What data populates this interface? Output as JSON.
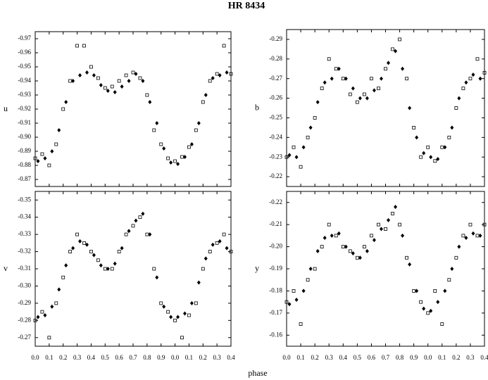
{
  "title": "HR 8434",
  "xlabel": "phase",
  "chart_data": [
    {
      "type": "scatter",
      "ylabel": "u",
      "xlim": [
        0,
        1.4
      ],
      "ylim": [
        -0.865,
        -0.975
      ],
      "xticks": [
        {
          "value": 0,
          "label": "0.0"
        },
        0.1,
        0.2,
        0.3,
        0.4,
        0.5,
        0.6,
        0.7,
        0.8,
        0.9,
        {
          "value": 1.0,
          "label": "0.0"
        },
        {
          "value": 1.1,
          "label": "0.1"
        },
        {
          "value": 1.2,
          "label": "0.2"
        },
        {
          "value": 1.3,
          "label": "0.3"
        },
        {
          "value": 1.4,
          "label": "0.4"
        }
      ],
      "yticks": [
        -0.97,
        -0.96,
        -0.95,
        -0.94,
        -0.93,
        -0.92,
        -0.91,
        {
          "value": -0.9,
          "label": "-0.90"
        },
        -0.89,
        -0.88,
        -0.87
      ],
      "series": [
        {
          "marker": "square",
          "color": "#000000",
          "x": [
            0.0,
            0.05,
            0.1,
            0.15,
            0.2,
            0.25,
            0.3,
            0.35,
            0.4,
            0.45,
            0.5,
            0.55,
            0.6,
            0.65,
            0.7,
            0.75,
            0.8,
            0.85,
            0.9,
            0.95,
            1.0,
            1.05,
            1.1,
            1.15,
            1.2,
            1.25,
            1.3,
            1.35,
            1.4
          ],
          "values": [
            -0.885,
            -0.888,
            -0.88,
            -0.895,
            -0.92,
            -0.94,
            -0.965,
            -0.965,
            -0.95,
            -0.942,
            -0.935,
            -0.936,
            -0.94,
            -0.944,
            -0.946,
            -0.942,
            -0.93,
            -0.905,
            -0.895,
            -0.885,
            -0.883,
            -0.886,
            -0.893,
            -0.905,
            -0.925,
            -0.94,
            -0.945,
            -0.965,
            -0.945
          ]
        },
        {
          "marker": "diamond",
          "color": "#000000",
          "x": [
            0.02,
            0.07,
            0.12,
            0.17,
            0.22,
            0.27,
            0.32,
            0.37,
            0.42,
            0.47,
            0.52,
            0.57,
            0.62,
            0.67,
            0.72,
            0.77,
            0.82,
            0.87,
            0.92,
            0.97,
            1.02,
            1.07,
            1.12,
            1.17,
            1.22,
            1.27,
            1.32,
            1.37
          ],
          "values": [
            -0.883,
            -0.885,
            -0.89,
            -0.905,
            -0.925,
            -0.94,
            -0.944,
            -0.946,
            -0.944,
            -0.937,
            -0.933,
            -0.932,
            -0.936,
            -0.94,
            -0.945,
            -0.94,
            -0.925,
            -0.91,
            -0.892,
            -0.882,
            -0.881,
            -0.886,
            -0.895,
            -0.91,
            -0.93,
            -0.942,
            -0.944,
            -0.946
          ]
        }
      ]
    },
    {
      "type": "scatter",
      "ylabel": "b",
      "xlim": [
        0,
        1.4
      ],
      "ylim": [
        -0.215,
        -0.295
      ],
      "xticks": [
        {
          "value": 0,
          "label": "0.0"
        },
        0.1,
        0.2,
        0.3,
        0.4,
        0.5,
        0.6,
        0.7,
        0.8,
        0.9,
        {
          "value": 1.0,
          "label": "0.0"
        },
        {
          "value": 1.1,
          "label": "0.1"
        },
        {
          "value": 1.2,
          "label": "0.2"
        },
        {
          "value": 1.3,
          "label": "0.3"
        },
        {
          "value": 1.4,
          "label": "0.4"
        }
      ],
      "yticks": [
        -0.29,
        -0.28,
        -0.27,
        -0.26,
        -0.25,
        -0.24,
        -0.23,
        -0.22
      ],
      "series": [
        {
          "marker": "square",
          "color": "#000000",
          "x": [
            0.0,
            0.05,
            0.1,
            0.15,
            0.2,
            0.25,
            0.3,
            0.35,
            0.4,
            0.45,
            0.5,
            0.55,
            0.6,
            0.65,
            0.7,
            0.75,
            0.8,
            0.85,
            0.9,
            0.95,
            1.0,
            1.05,
            1.1,
            1.15,
            1.2,
            1.25,
            1.3,
            1.35,
            1.4
          ],
          "values": [
            -0.23,
            -0.235,
            -0.225,
            -0.24,
            -0.25,
            -0.265,
            -0.28,
            -0.275,
            -0.27,
            -0.262,
            -0.258,
            -0.262,
            -0.27,
            -0.265,
            -0.275,
            -0.285,
            -0.29,
            -0.27,
            -0.245,
            -0.23,
            -0.235,
            -0.228,
            -0.235,
            -0.24,
            -0.255,
            -0.265,
            -0.27,
            -0.28,
            -0.273
          ]
        },
        {
          "marker": "diamond",
          "color": "#000000",
          "x": [
            0.02,
            0.07,
            0.12,
            0.17,
            0.22,
            0.27,
            0.32,
            0.37,
            0.42,
            0.47,
            0.52,
            0.57,
            0.62,
            0.67,
            0.72,
            0.77,
            0.82,
            0.87,
            0.92,
            0.97,
            1.02,
            1.07,
            1.12,
            1.17,
            1.22,
            1.27,
            1.32,
            1.37
          ],
          "values": [
            -0.231,
            -0.23,
            -0.235,
            -0.245,
            -0.258,
            -0.268,
            -0.27,
            -0.275,
            -0.27,
            -0.265,
            -0.26,
            -0.26,
            -0.264,
            -0.27,
            -0.278,
            -0.284,
            -0.275,
            -0.255,
            -0.24,
            -0.232,
            -0.23,
            -0.229,
            -0.235,
            -0.245,
            -0.26,
            -0.268,
            -0.272,
            -0.27
          ]
        }
      ]
    },
    {
      "type": "scatter",
      "ylabel": "v",
      "xlim": [
        0,
        1.4
      ],
      "ylim": [
        -0.265,
        -0.355
      ],
      "xticks": [
        {
          "value": 0,
          "label": "0.0"
        },
        0.1,
        0.2,
        0.3,
        0.4,
        0.5,
        0.6,
        0.7,
        0.8,
        0.9,
        {
          "value": 1.0,
          "label": "0.0"
        },
        {
          "value": 1.1,
          "label": "0.1"
        },
        {
          "value": 1.2,
          "label": "0.2"
        },
        {
          "value": 1.3,
          "label": "0.3"
        },
        {
          "value": 1.4,
          "label": "0.4"
        }
      ],
      "yticks": [
        -0.35,
        -0.34,
        -0.33,
        -0.32,
        -0.31,
        {
          "value": -0.3,
          "label": "-0.30"
        },
        -0.29,
        -0.28,
        -0.27
      ],
      "series": [
        {
          "marker": "square",
          "color": "#000000",
          "x": [
            0.0,
            0.05,
            0.1,
            0.15,
            0.2,
            0.25,
            0.3,
            0.35,
            0.4,
            0.45,
            0.5,
            0.55,
            0.6,
            0.65,
            0.7,
            0.75,
            0.8,
            0.85,
            0.9,
            0.95,
            1.0,
            1.05,
            1.1,
            1.15,
            1.2,
            1.25,
            1.3,
            1.35,
            1.4
          ],
          "values": [
            -0.28,
            -0.285,
            -0.27,
            -0.29,
            -0.305,
            -0.32,
            -0.33,
            -0.325,
            -0.32,
            -0.315,
            -0.31,
            -0.31,
            -0.32,
            -0.33,
            -0.335,
            -0.34,
            -0.33,
            -0.31,
            -0.29,
            -0.285,
            -0.28,
            -0.27,
            -0.283,
            -0.29,
            -0.31,
            -0.32,
            -0.325,
            -0.33,
            -0.32
          ]
        },
        {
          "marker": "diamond",
          "color": "#000000",
          "x": [
            0.02,
            0.07,
            0.12,
            0.17,
            0.22,
            0.27,
            0.32,
            0.37,
            0.42,
            0.47,
            0.52,
            0.57,
            0.62,
            0.67,
            0.72,
            0.77,
            0.82,
            0.87,
            0.92,
            0.97,
            1.02,
            1.07,
            1.12,
            1.17,
            1.22,
            1.27,
            1.32,
            1.37
          ],
          "values": [
            -0.282,
            -0.283,
            -0.288,
            -0.298,
            -0.312,
            -0.322,
            -0.326,
            -0.324,
            -0.318,
            -0.312,
            -0.31,
            -0.313,
            -0.322,
            -0.332,
            -0.338,
            -0.342,
            -0.33,
            -0.305,
            -0.288,
            -0.282,
            -0.282,
            -0.284,
            -0.29,
            -0.302,
            -0.316,
            -0.324,
            -0.326,
            -0.322
          ]
        }
      ]
    },
    {
      "type": "scatter",
      "ylabel": "y",
      "xlim": [
        0,
        1.4
      ],
      "ylim": [
        -0.155,
        -0.225
      ],
      "xticks": [
        {
          "value": 0,
          "label": "0.0"
        },
        0.1,
        0.2,
        0.3,
        0.4,
        0.5,
        0.6,
        0.7,
        0.8,
        0.9,
        {
          "value": 1.0,
          "label": "0.0"
        },
        {
          "value": 1.1,
          "label": "0.1"
        },
        {
          "value": 1.2,
          "label": "0.2"
        },
        {
          "value": 1.3,
          "label": "0.3"
        },
        {
          "value": 1.4,
          "label": "0.4"
        }
      ],
      "yticks": [
        -0.22,
        -0.21,
        {
          "value": -0.2,
          "label": "-0.20"
        },
        -0.19,
        -0.18,
        -0.17,
        -0.16
      ],
      "series": [
        {
          "marker": "square",
          "color": "#000000",
          "x": [
            0.0,
            0.05,
            0.1,
            0.15,
            0.2,
            0.25,
            0.3,
            0.35,
            0.4,
            0.45,
            0.5,
            0.55,
            0.6,
            0.65,
            0.7,
            0.75,
            0.8,
            0.85,
            0.9,
            0.95,
            1.0,
            1.05,
            1.1,
            1.15,
            1.2,
            1.25,
            1.3,
            1.35,
            1.4
          ],
          "values": [
            -0.175,
            -0.18,
            -0.165,
            -0.185,
            -0.19,
            -0.2,
            -0.21,
            -0.205,
            -0.2,
            -0.198,
            -0.195,
            -0.2,
            -0.205,
            -0.21,
            -0.208,
            -0.215,
            -0.21,
            -0.195,
            -0.18,
            -0.175,
            -0.17,
            -0.18,
            -0.165,
            -0.185,
            -0.195,
            -0.205,
            -0.21,
            -0.205,
            -0.21
          ]
        },
        {
          "marker": "diamond",
          "color": "#000000",
          "x": [
            0.02,
            0.07,
            0.12,
            0.17,
            0.22,
            0.27,
            0.32,
            0.37,
            0.42,
            0.47,
            0.52,
            0.57,
            0.62,
            0.67,
            0.72,
            0.77,
            0.82,
            0.87,
            0.92,
            0.97,
            1.02,
            1.07,
            1.12,
            1.17,
            1.22,
            1.27,
            1.32,
            1.37
          ],
          "values": [
            -0.174,
            -0.176,
            -0.18,
            -0.19,
            -0.198,
            -0.204,
            -0.205,
            -0.206,
            -0.2,
            -0.197,
            -0.195,
            -0.198,
            -0.203,
            -0.208,
            -0.212,
            -0.218,
            -0.205,
            -0.192,
            -0.18,
            -0.172,
            -0.171,
            -0.175,
            -0.18,
            -0.19,
            -0.2,
            -0.204,
            -0.206,
            -0.205
          ]
        }
      ]
    }
  ]
}
